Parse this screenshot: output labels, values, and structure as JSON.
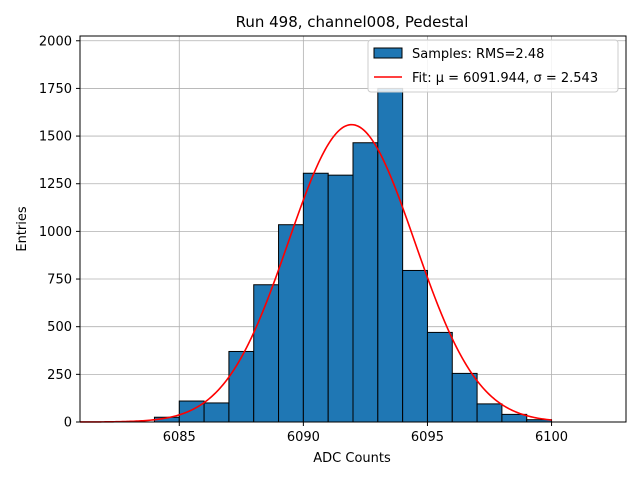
{
  "chart_data": {
    "type": "bar",
    "title": "Run 498, channel008, Pedestal",
    "xlabel": "ADC Counts",
    "ylabel": "Entries",
    "xlim": [
      6081,
      6103
    ],
    "ylim": [
      0,
      2025
    ],
    "grid": true,
    "legend_position": "top-right",
    "x_ticks": [
      6085,
      6090,
      6095,
      6100
    ],
    "y_ticks": [
      0,
      250,
      500,
      750,
      1000,
      1250,
      1500,
      1750,
      2000
    ],
    "bins": [
      {
        "x0": 6084,
        "x1": 6085,
        "count": 25
      },
      {
        "x0": 6085,
        "x1": 6086,
        "count": 110
      },
      {
        "x0": 6086,
        "x1": 6087,
        "count": 100
      },
      {
        "x0": 6087,
        "x1": 6088,
        "count": 370
      },
      {
        "x0": 6088,
        "x1": 6089,
        "count": 720
      },
      {
        "x0": 6089,
        "x1": 6090,
        "count": 1035
      },
      {
        "x0": 6090,
        "x1": 6091,
        "count": 1305
      },
      {
        "x0": 6091,
        "x1": 6092,
        "count": 1295
      },
      {
        "x0": 6092,
        "x1": 6093,
        "count": 1465
      },
      {
        "x0": 6093,
        "x1": 6094,
        "count": 1750
      },
      {
        "x0": 6094,
        "x1": 6095,
        "count": 795
      },
      {
        "x0": 6095,
        "x1": 6096,
        "count": 470
      },
      {
        "x0": 6096,
        "x1": 6097,
        "count": 255
      },
      {
        "x0": 6097,
        "x1": 6098,
        "count": 95
      },
      {
        "x0": 6098,
        "x1": 6099,
        "count": 40
      },
      {
        "x0": 6099,
        "x1": 6100,
        "count": 12
      }
    ],
    "fit": {
      "mu": 6091.944,
      "sigma": 2.543,
      "peak": 1560,
      "x_range": [
        6081,
        6100
      ]
    },
    "legend": [
      {
        "label": "Samples: RMS=2.48",
        "kind": "patch",
        "color": "#1f77b4"
      },
      {
        "label": "Fit: μ = 6091.944, σ = 2.543",
        "kind": "line",
        "color": "#ff0000"
      }
    ]
  }
}
